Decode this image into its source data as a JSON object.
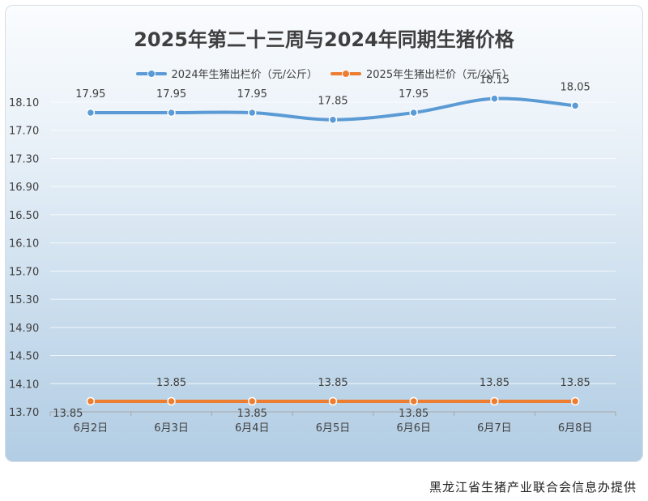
{
  "chart_data": {
    "type": "line",
    "title": "2025年第二十三周与2024年同期生猪价格",
    "categories": [
      "6月2日",
      "6月3日",
      "6月4日",
      "6月5日",
      "6月6日",
      "6月7日",
      "6月8日"
    ],
    "series": [
      {
        "name": "2024年生猪出栏价（元/公斤）",
        "color": "#5b9bd5",
        "values": [
          17.95,
          17.95,
          17.95,
          17.85,
          17.95,
          18.15,
          18.05
        ],
        "labels": [
          "17.95",
          "17.95",
          "17.95",
          "17.85",
          "17.95",
          "18.15",
          "18.05"
        ]
      },
      {
        "name": "2025年生猪出栏价（元/公斤）",
        "color": "#ed7d31",
        "values": [
          13.85,
          13.85,
          13.85,
          13.85,
          13.85,
          13.85,
          13.85
        ],
        "labels": [
          "13.85",
          "13.85",
          "13.85",
          "13.85",
          "13.85",
          "13.85",
          "13.85"
        ],
        "label_positions": [
          "below",
          "above",
          "below",
          "above",
          "below",
          "above",
          "above"
        ]
      }
    ],
    "yticks": [
      "13.70",
      "14.10",
      "14.50",
      "14.90",
      "15.30",
      "15.70",
      "16.10",
      "16.50",
      "16.90",
      "17.30",
      "17.70",
      "18.10"
    ],
    "ylim": [
      13.7,
      18.1
    ],
    "grid": true,
    "legend_position": "top"
  },
  "source_note": "黑龙江省生猪产业联合会信息办提供"
}
